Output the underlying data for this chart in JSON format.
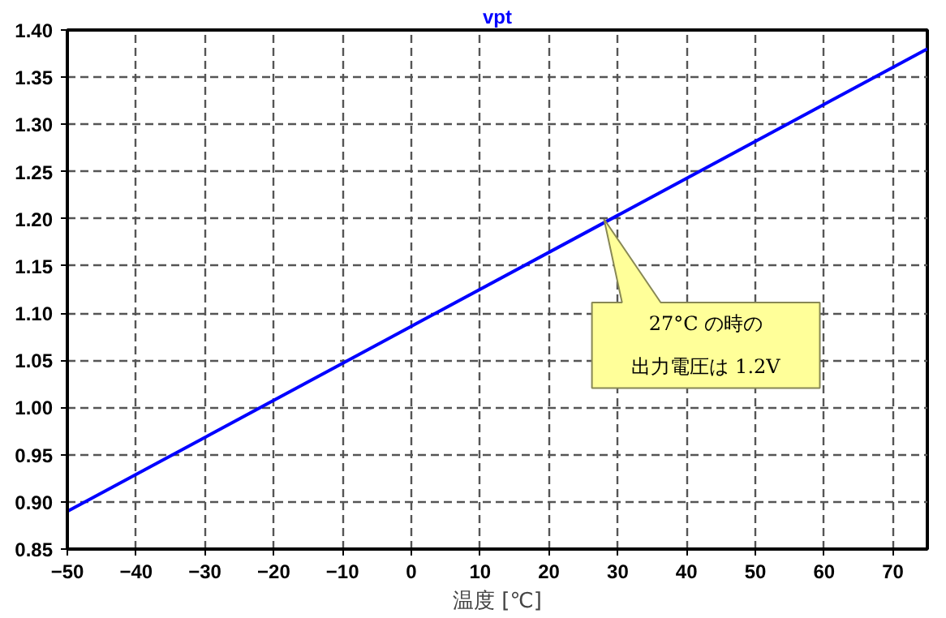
{
  "chart_data": {
    "type": "line",
    "title": "vpt",
    "xlabel": "温度 [℃]",
    "x": [
      -50,
      75
    ],
    "series": [
      {
        "color": "#0000ff",
        "values": [
          0.89,
          1.38
        ]
      }
    ],
    "xlim": [
      -50,
      75
    ],
    "ylim": [
      0.85,
      1.4
    ],
    "xticks": [
      -50,
      -40,
      -30,
      -20,
      -10,
      0,
      10,
      20,
      30,
      40,
      50,
      60,
      70
    ],
    "yticks": [
      {
        "value": 0.85,
        "label": "0.85"
      },
      {
        "value": 0.9,
        "label": "0.90"
      },
      {
        "value": 0.95,
        "label": "0.95"
      },
      {
        "value": 1.0,
        "label": "1.00"
      },
      {
        "value": 1.05,
        "label": "1.05"
      },
      {
        "value": 1.1,
        "label": "1.10"
      },
      {
        "value": 1.15,
        "label": "1.15"
      },
      {
        "value": 1.2,
        "label": "1.20"
      },
      {
        "value": 1.25,
        "label": "1.25"
      },
      {
        "value": 1.3,
        "label": "1.30"
      },
      {
        "value": 1.35,
        "label": "1.35"
      },
      {
        "value": 1.4,
        "label": "1.40"
      }
    ],
    "annotations": [
      "27°C の時の",
      "出力電圧は 1.2V"
    ],
    "grid": true,
    "marker": "none",
    "line_style": "solid"
  }
}
